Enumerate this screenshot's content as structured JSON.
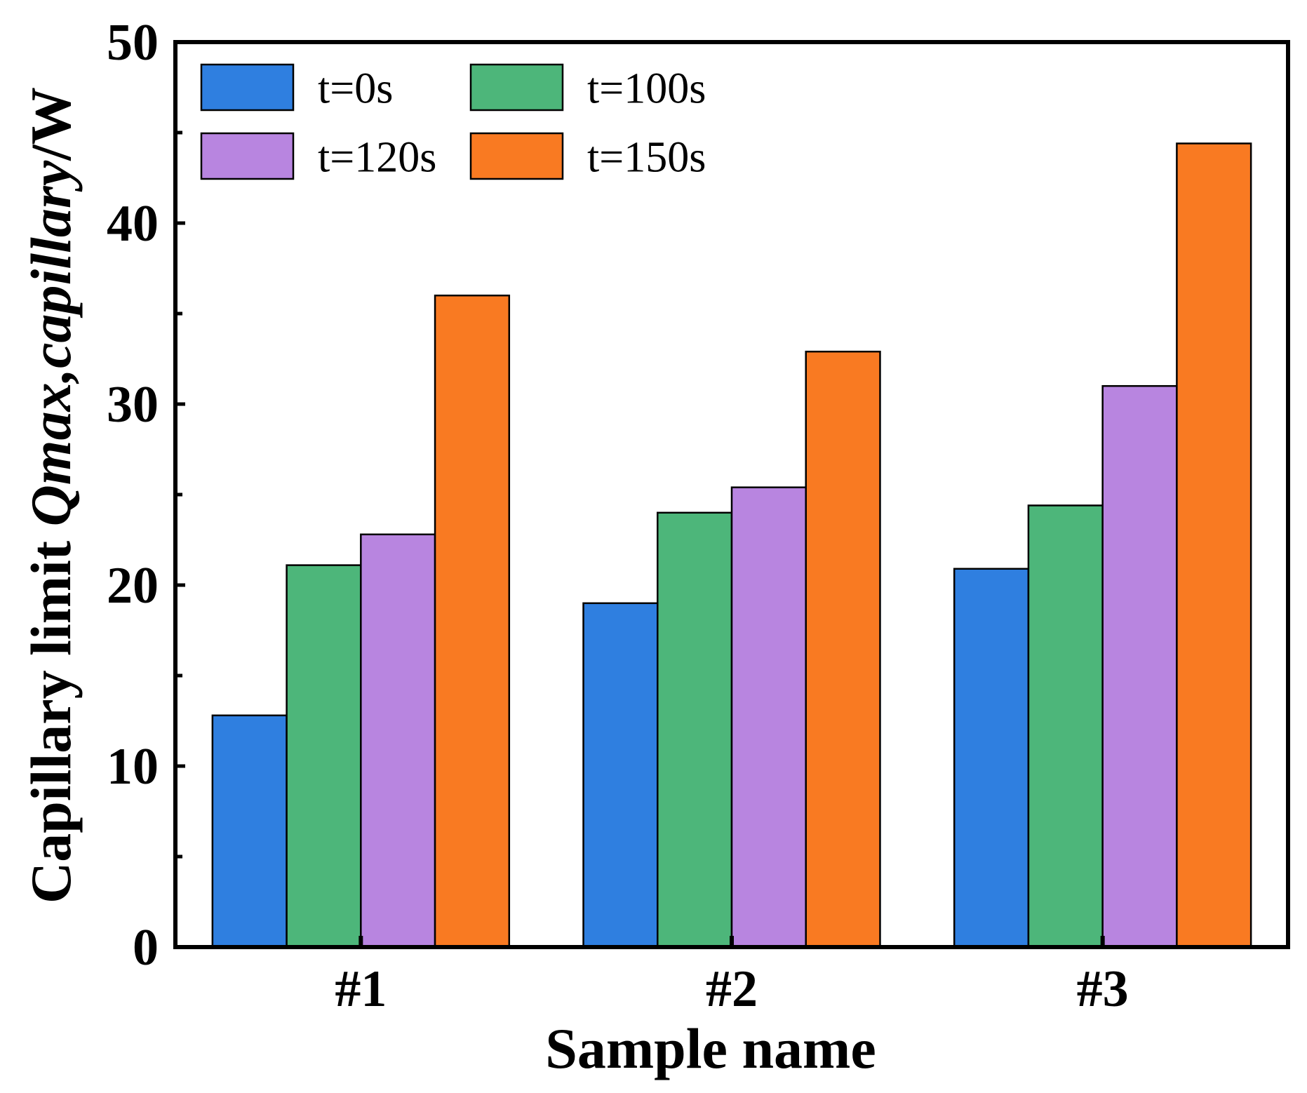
{
  "chart_data": {
    "type": "bar",
    "title": "",
    "xlabel": "Sample name",
    "ylabel": {
      "prefix": "Capillary limit ",
      "italic": "Qmax,capillary",
      "suffix": "/W"
    },
    "categories": [
      "#1",
      "#2",
      "#3"
    ],
    "series": [
      {
        "name": "t=0s",
        "color": "#2F7FE0",
        "values": [
          12.8,
          19.0,
          20.9
        ]
      },
      {
        "name": "t=100s",
        "color": "#4DB67A",
        "values": [
          21.1,
          24.0,
          24.4
        ]
      },
      {
        "name": "t=120s",
        "color": "#B885E0",
        "values": [
          22.8,
          25.4,
          31.0
        ]
      },
      {
        "name": "t=150s",
        "color": "#F97A22",
        "values": [
          36.0,
          32.9,
          44.4
        ]
      }
    ],
    "ylim": [
      0,
      50
    ],
    "yticks": [
      0,
      10,
      20,
      30,
      40,
      50
    ],
    "yminor_step": 5,
    "xlim": [
      0.5,
      3.5
    ],
    "grid": false,
    "legend": {
      "position": "top-left",
      "columns": 2
    }
  }
}
